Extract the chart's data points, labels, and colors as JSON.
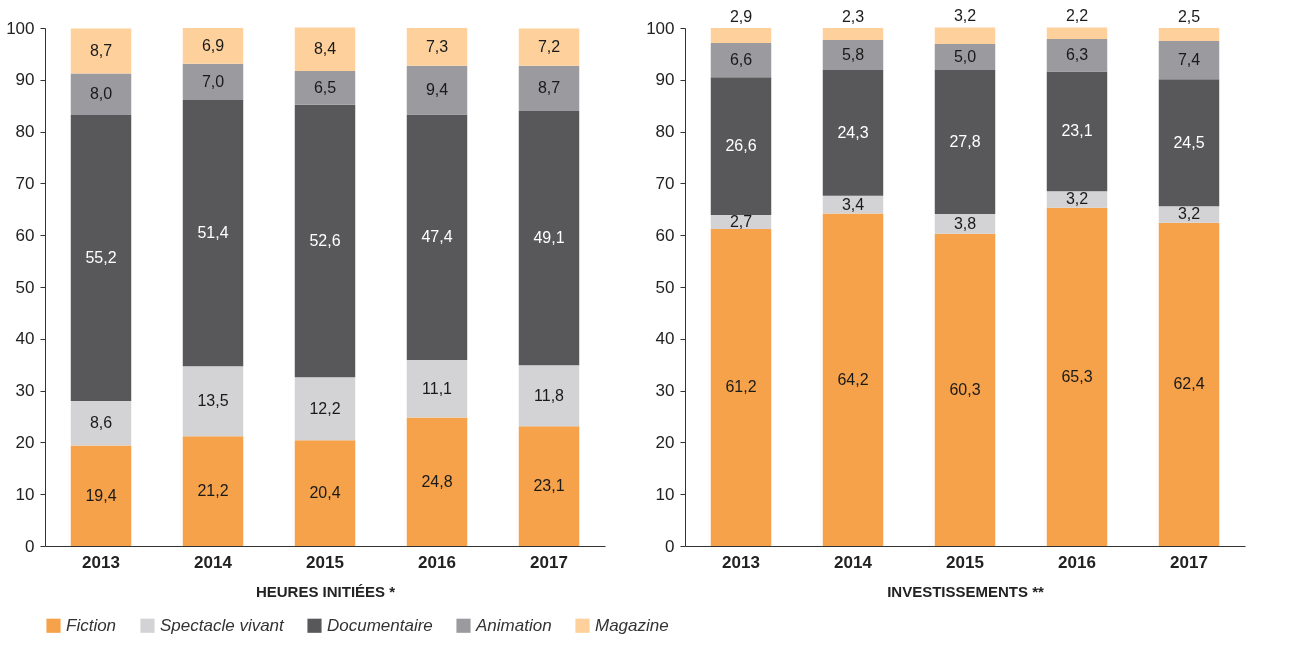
{
  "chart_data": [
    {
      "type": "bar",
      "stacked": true,
      "xlabel": "HEURES INITIÉES *",
      "categories": [
        "2013",
        "2014",
        "2015",
        "2016",
        "2017"
      ],
      "ylim": [
        0,
        100
      ],
      "yticks": [
        0,
        10,
        20,
        30,
        40,
        50,
        60,
        70,
        80,
        90,
        100
      ],
      "grid": false,
      "legend": "bottom",
      "series": [
        {
          "name": "Fiction",
          "color": "#f5a24a",
          "values": [
            19.4,
            21.2,
            20.4,
            24.8,
            23.1
          ],
          "value_labels": [
            "19,4",
            "21,2",
            "20,4",
            "24,8",
            "23,1"
          ]
        },
        {
          "name": "Spectacle vivant",
          "color": "#d3d3d5",
          "values": [
            8.6,
            13.5,
            12.2,
            11.1,
            11.8
          ],
          "value_labels": [
            "8,6",
            "13,5",
            "12,2",
            "11,1",
            "11,8"
          ]
        },
        {
          "name": "Documentaire",
          "color": "#58585a",
          "values": [
            55.2,
            51.4,
            52.6,
            47.4,
            49.1
          ],
          "value_labels": [
            "55,2",
            "51,4",
            "52,6",
            "47,4",
            "49,1"
          ]
        },
        {
          "name": "Animation",
          "color": "#9b9b9f",
          "values": [
            8.0,
            7.0,
            6.5,
            9.4,
            8.7
          ],
          "value_labels": [
            "8,0",
            "7,0",
            "6,5",
            "9,4",
            "8,7"
          ]
        },
        {
          "name": "Magazine",
          "color": "#fdd09c",
          "values": [
            8.7,
            6.9,
            8.4,
            7.3,
            7.2
          ],
          "value_labels": [
            "8,7",
            "6,9",
            "8,4",
            "7,3",
            "7,2"
          ]
        }
      ]
    },
    {
      "type": "bar",
      "stacked": true,
      "xlabel": "INVESTISSEMENTS **",
      "categories": [
        "2013",
        "2014",
        "2015",
        "2016",
        "2017"
      ],
      "ylim": [
        0,
        100
      ],
      "yticks": [
        0,
        10,
        20,
        30,
        40,
        50,
        60,
        70,
        80,
        90,
        100
      ],
      "grid": false,
      "legend": "bottom",
      "series": [
        {
          "name": "Fiction",
          "color": "#f5a24a",
          "values": [
            61.2,
            64.2,
            60.3,
            65.3,
            62.4
          ],
          "value_labels": [
            "61,2",
            "64,2",
            "60,3",
            "65,3",
            "62,4"
          ]
        },
        {
          "name": "Spectacle vivant",
          "color": "#d3d3d5",
          "values": [
            2.7,
            3.4,
            3.8,
            3.2,
            3.2
          ],
          "value_labels": [
            "2,7",
            "3,4",
            "3,8",
            "3,2",
            "3,2"
          ]
        },
        {
          "name": "Documentaire",
          "color": "#58585a",
          "values": [
            26.6,
            24.3,
            27.8,
            23.1,
            24.5
          ],
          "value_labels": [
            "26,6",
            "24,3",
            "27,8",
            "23,1",
            "24,5"
          ]
        },
        {
          "name": "Animation",
          "color": "#9b9b9f",
          "values": [
            6.6,
            5.8,
            5.0,
            6.3,
            7.4
          ],
          "value_labels": [
            "6,6",
            "5,8",
            "5,0",
            "6,3",
            "7,4"
          ]
        },
        {
          "name": "Magazine",
          "color": "#fdd09c",
          "values": [
            2.9,
            2.3,
            3.2,
            2.2,
            2.5
          ],
          "value_labels": [
            "2,9",
            "2,3",
            "3,2",
            "2,2",
            "2,5"
          ]
        }
      ]
    }
  ]
}
